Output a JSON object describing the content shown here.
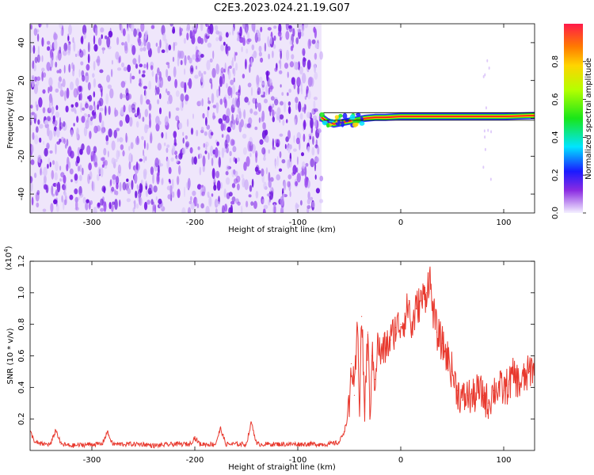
{
  "title": "C2E3.2023.024.21.19.G07",
  "chart_data": [
    {
      "type": "heatmap",
      "title": "C2E3.2023.024.21.19.G07",
      "xlabel": "Height of straight line (km)",
      "ylabel": "Frequency (Hz)",
      "xlim": [
        -360,
        130
      ],
      "ylim": [
        -50,
        50
      ],
      "x_ticks": [
        -300,
        -200,
        -100,
        0,
        100
      ],
      "y_ticks": [
        -40,
        -20,
        0,
        20,
        40
      ],
      "noise_region_x": [
        -360,
        -77
      ],
      "signal_track": [
        {
          "x": -77,
          "y": 0.5
        },
        {
          "x": -72,
          "y": -1.5
        },
        {
          "x": -65,
          "y": -3
        },
        {
          "x": -55,
          "y": -2
        },
        {
          "x": -45,
          "y": -1
        },
        {
          "x": -35,
          "y": 0
        },
        {
          "x": -25,
          "y": 0.5
        },
        {
          "x": -15,
          "y": 0.5
        },
        {
          "x": 0,
          "y": 1
        },
        {
          "x": 50,
          "y": 1
        },
        {
          "x": 100,
          "y": 1
        },
        {
          "x": 130,
          "y": 1.5
        }
      ],
      "colorbar": {
        "label": "Normalized spectral amplitude",
        "range": [
          0,
          1
        ],
        "ticks": [
          "0.0",
          "0.2",
          "0.4",
          "0.6",
          "0.8"
        ]
      }
    },
    {
      "type": "line",
      "xlabel": "Height of straight line (km)",
      "ylabel": "SNR (10 * v/v)",
      "y_multiplier_label": "(x10",
      "y_multiplier_exp": "4",
      "y_multiplier_close": ")",
      "xlim": [
        -360,
        130
      ],
      "ylim": [
        0,
        1.2
      ],
      "x_ticks": [
        -300,
        -200,
        -100,
        0,
        100
      ],
      "y_ticks": [
        "0.2",
        "0.4",
        "0.6",
        "0.8",
        "1.0",
        "1.2"
      ],
      "color": "#e8392e",
      "series": [
        {
          "x": [
            -360,
            -355,
            -350,
            -340,
            -335,
            -330,
            -320,
            -300,
            -290,
            -285,
            -280,
            -270,
            -250,
            -240,
            -220,
            -205,
            -200,
            -195,
            -190,
            -180,
            -175,
            -170,
            -150,
            -145,
            -140,
            -130,
            -110,
            -100,
            -90,
            -80,
            -70,
            -60,
            -55,
            -50,
            -48,
            -45,
            -42,
            -40,
            -38,
            -35,
            -32,
            -30,
            -28,
            -25,
            -22,
            -20,
            -15,
            -10,
            -5,
            0,
            5,
            8,
            10,
            15,
            20,
            25,
            28,
            30,
            35,
            40,
            45,
            50,
            55,
            60,
            65,
            70,
            75,
            80,
            85,
            90,
            95,
            100,
            105,
            110,
            115,
            120,
            125,
            130
          ],
          "y": [
            0.12,
            0.05,
            0.04,
            0.04,
            0.13,
            0.04,
            0.03,
            0.04,
            0.04,
            0.12,
            0.04,
            0.04,
            0.04,
            0.03,
            0.04,
            0.04,
            0.08,
            0.04,
            0.04,
            0.04,
            0.14,
            0.04,
            0.04,
            0.18,
            0.04,
            0.04,
            0.04,
            0.04,
            0.04,
            0.04,
            0.04,
            0.05,
            0.12,
            0.25,
            0.55,
            0.35,
            0.78,
            0.3,
            0.85,
            0.25,
            0.75,
            0.2,
            0.6,
            0.45,
            0.7,
            0.6,
            0.65,
            0.7,
            0.78,
            0.8,
            0.85,
            0.95,
            0.75,
            0.9,
            0.95,
            1.0,
            1.12,
            0.95,
            0.75,
            0.68,
            0.6,
            0.5,
            0.38,
            0.32,
            0.35,
            0.33,
            0.38,
            0.35,
            0.3,
            0.38,
            0.4,
            0.38,
            0.42,
            0.48,
            0.42,
            0.45,
            0.5,
            0.55
          ]
        }
      ]
    }
  ]
}
